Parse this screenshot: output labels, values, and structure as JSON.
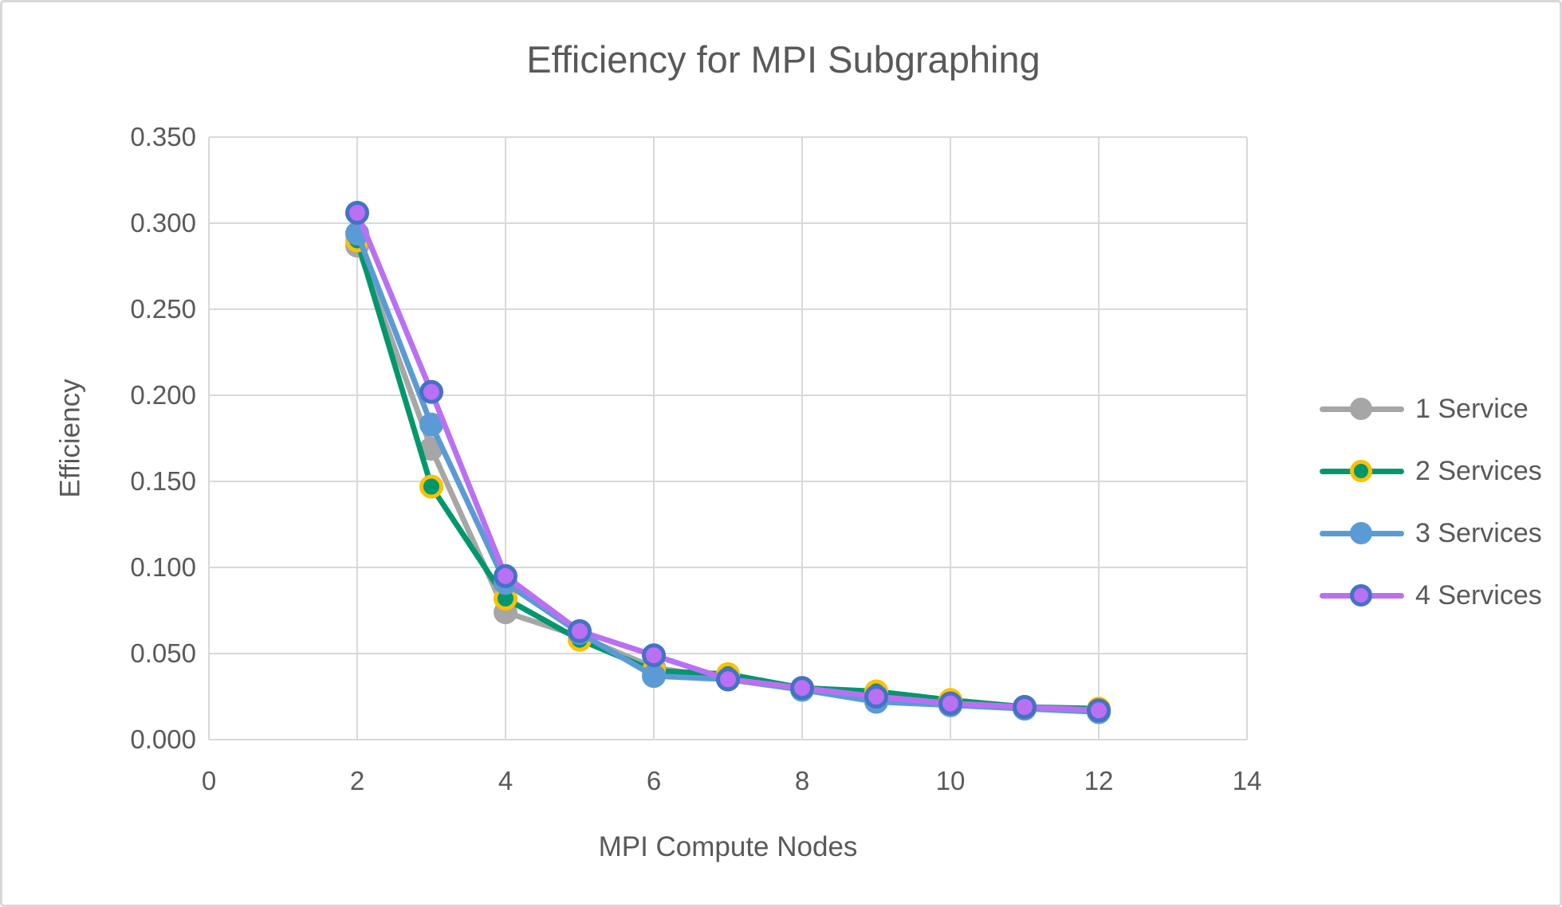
{
  "title": "Efficiency for MPI Subgraphing",
  "axes": {
    "x_title": "MPI Compute Nodes",
    "y_title": "Efficiency",
    "x_tick_labels": [
      "0",
      "2",
      "4",
      "6",
      "8",
      "10",
      "12",
      "14"
    ],
    "y_tick_labels": [
      "0.000",
      "0.050",
      "0.100",
      "0.150",
      "0.200",
      "0.250",
      "0.300",
      "0.350"
    ]
  },
  "colors": {
    "text": "#595959",
    "gridline": "#d9d9d9",
    "frame_border": "#d8d8d8",
    "series_gray": "#a6a6a6",
    "series_green": "#00976d",
    "series_green_marker_ring": "#ffc000",
    "series_blue": "#5b9bd5",
    "series_purple": "#ba70f2",
    "series_purple_marker_ring": "#4472c4"
  },
  "chart_data": {
    "type": "line",
    "title": "Efficiency for MPI Subgraphing",
    "xlabel": "MPI Compute Nodes",
    "ylabel": "Efficiency",
    "xlim": [
      0,
      14
    ],
    "ylim": [
      0,
      0.35
    ],
    "x_tick_step": 2,
    "y_tick_step": 0.05,
    "grid": true,
    "legend_position": "right",
    "x": [
      2,
      3,
      4,
      5,
      6,
      7,
      8,
      9,
      10,
      11,
      12
    ],
    "series": [
      {
        "name": "1 Service",
        "line_color": "#a6a6a6",
        "marker_fill": "#a6a6a6",
        "marker_outline": "#a6a6a6",
        "values": [
          0.287,
          0.169,
          0.074,
          0.06,
          0.042,
          0.035,
          0.029,
          0.024,
          0.02,
          0.019,
          0.016
        ]
      },
      {
        "name": "2 Services",
        "line_color": "#00976d",
        "marker_fill": "#00976d",
        "marker_outline": "#ffc000",
        "values": [
          0.29,
          0.147,
          0.082,
          0.058,
          0.04,
          0.038,
          0.03,
          0.028,
          0.023,
          0.019,
          0.018
        ]
      },
      {
        "name": "3 Services",
        "line_color": "#5b9bd5",
        "marker_fill": "#5b9bd5",
        "marker_outline": "#5b9bd5",
        "values": [
          0.294,
          0.183,
          0.091,
          0.062,
          0.037,
          0.035,
          0.029,
          0.022,
          0.02,
          0.018,
          0.016
        ]
      },
      {
        "name": "4 Services",
        "line_color": "#ba70f2",
        "marker_fill": "#ba70f2",
        "marker_outline": "#4472c4",
        "values": [
          0.306,
          0.202,
          0.095,
          0.063,
          0.049,
          0.035,
          0.03,
          0.025,
          0.021,
          0.019,
          0.017
        ]
      }
    ]
  }
}
